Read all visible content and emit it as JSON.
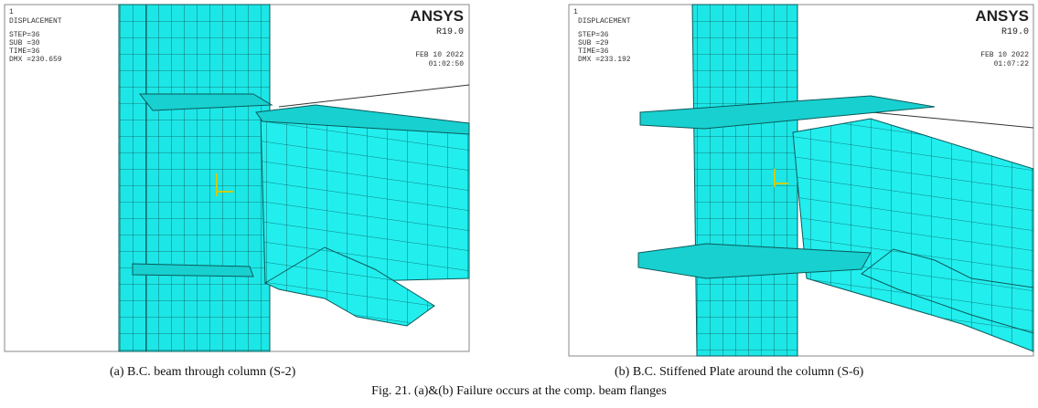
{
  "panels": [
    {
      "window_number": "1",
      "info": [
        "DISPLACEMENT",
        "STEP=36",
        "SUB =30",
        "TIME=36",
        "DMX =230.659"
      ],
      "logo": "ANSYS",
      "version": "R19.0",
      "date": "FEB 10 2022",
      "time": "01:02:50",
      "caption": "(a) B.C. beam through column (S-2)"
    },
    {
      "window_number": "1",
      "info": [
        "DISPLACEMENT",
        "STEP=36",
        "SUB =29",
        "TIME=36",
        "DMX =233.192"
      ],
      "logo": "ANSYS",
      "version": "R19.0",
      "date": "FEB 10 2022",
      "time": "01:07:22",
      "caption": "(b) B.C. Stiffened Plate around the column (S-6)"
    }
  ],
  "figure_caption": "Fig. 21. (a)&(b) Failure occurs at the comp. beam flanges"
}
